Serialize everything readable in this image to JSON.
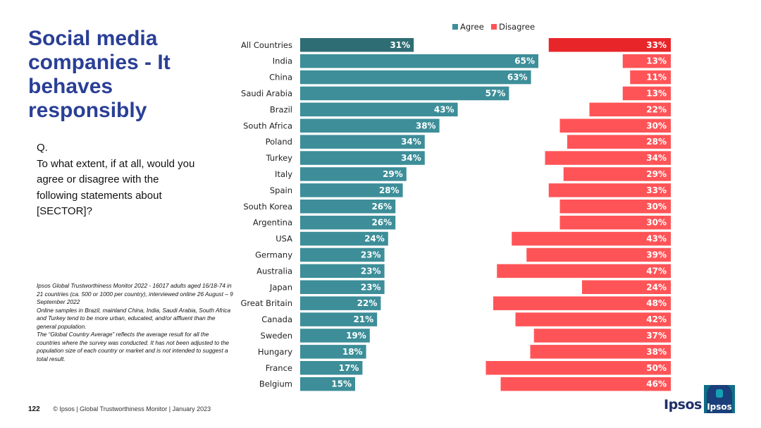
{
  "title": "Social media companies - It behaves responsibly",
  "question": "Q.\nTo what extent, if at all, would you agree or disagree with the following statements about [SECTOR]?",
  "notes": [
    "Ipsos Global Trustworthiness Monitor 2022 - 16017 adults aged 16/18-74 in 21 countries (ca. 500 or 1000 per country), interviewed online 26 August – 9 September 2022",
    "Online samples in Brazil, mainland China, India, Saudi Arabia, South Africa and Turkey tend to be more urban, educated, and/or affluent than the general population.",
    "The “Global Country Average” reflects the average result for all the countries where the survey was conducted. It has not been adjusted to the population size of each country or market and is not intended to suggest a total result."
  ],
  "footer": {
    "page_number": "122",
    "text": "© Ipsos | Global Trustworthiness Monitor | January 2023"
  },
  "brand": {
    "wordmark": "Ipsos",
    "logo_text": "Ipsos"
  },
  "colors": {
    "agree": "#3d8e99",
    "agree_highlight": "#2f6d74",
    "disagree": "#ff5457",
    "disagree_highlight": "#e8262a",
    "title": "#2a3f96"
  },
  "chart_data": {
    "type": "bar",
    "orientation": "horizontal",
    "legend": [
      "Agree",
      "Disagree"
    ],
    "legend_position": "top-right",
    "categories": [
      "All Countries",
      "India",
      "China",
      "Saudi Arabia",
      "Brazil",
      "South Africa",
      "Poland",
      "Turkey",
      "Italy",
      "Spain",
      "South Korea",
      "Argentina",
      "USA",
      "Germany",
      "Australia",
      "Japan",
      "Great Britain",
      "Canada",
      "Sweden",
      "Hungary",
      "France",
      "Belgium"
    ],
    "series": [
      {
        "name": "Agree",
        "values": [
          31,
          65,
          63,
          57,
          43,
          38,
          34,
          34,
          29,
          28,
          26,
          26,
          24,
          23,
          23,
          23,
          22,
          21,
          19,
          18,
          17,
          15
        ]
      },
      {
        "name": "Disagree",
        "values": [
          33,
          13,
          11,
          13,
          22,
          30,
          28,
          34,
          29,
          33,
          30,
          30,
          43,
          39,
          47,
          24,
          48,
          42,
          37,
          38,
          50,
          46
        ]
      }
    ],
    "value_suffix": "%"
  }
}
